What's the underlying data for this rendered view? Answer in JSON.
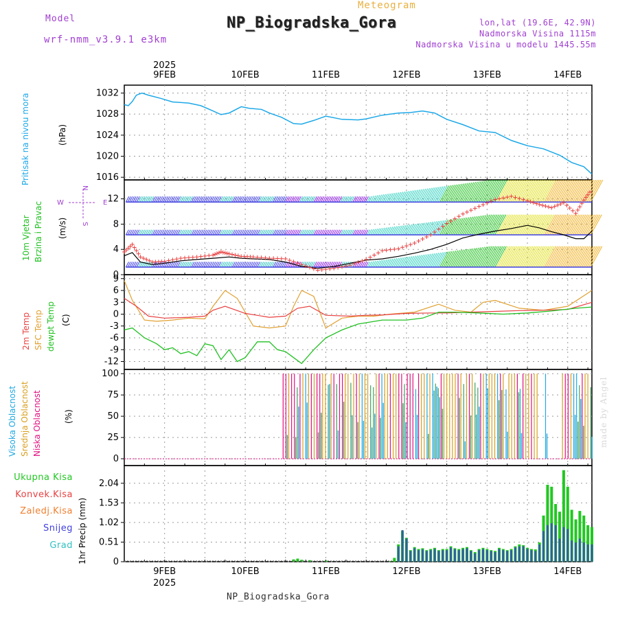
{
  "header": {
    "model_label": "Model",
    "model_name": "wrf-nmm_v3.9.1 e3km",
    "meteogram_label": "Meteogram",
    "station": "NP_Biogradska_Gora",
    "lonlat": "lon,lat (19.6E, 42.9N)",
    "altitude": "Nadmorska Visina 1115m",
    "model_altitude": "Nadmorska Visina u modelu 1445.55m"
  },
  "footer": {
    "station": "NP_Biogradska_Gora",
    "made_by": "made by Angel"
  },
  "colors": {
    "pressure": "#1ca8e8",
    "temp2m": "#e84040",
    "sfc": "#e0a030",
    "dewpt": "#20c020",
    "high_cloud": "#20a8e0",
    "mid_cloud": "#d8a020",
    "low_cloud": "#e01080",
    "precip_total": "#20c820",
    "precip_conv": "#e84040",
    "precip_frozen": "#f08030",
    "snow": "#4040e0",
    "hail": "#30c0c0",
    "wind_line": "#000000",
    "gust_cross": "#e84040"
  },
  "chart_data": [
    {
      "type": "line",
      "title": "Pritisak na nivou mora",
      "ylabel": "(hPa)",
      "ylim": [
        1015.5,
        1033.5
      ],
      "yticks": [
        1016,
        1020,
        1024,
        1028,
        1032
      ],
      "yticklabels": [
        "1016",
        "1020",
        "1024",
        "1028",
        "1032"
      ],
      "top_year": "2025",
      "x_days": [
        "9FEB",
        "10FEB",
        "11FEB",
        "12FEB",
        "13FEB",
        "14FEB"
      ],
      "series": [
        {
          "name": "pressure",
          "x": [
            0,
            0.05,
            0.1,
            0.15,
            0.22,
            0.3,
            0.45,
            0.6,
            0.8,
            0.95,
            1.1,
            1.2,
            1.3,
            1.45,
            1.55,
            1.7,
            1.8,
            1.95,
            2.1,
            2.2,
            2.35,
            2.5,
            2.7,
            2.9,
            3.0,
            3.2,
            3.4,
            3.55,
            3.7,
            3.85,
            4.0,
            4.2,
            4.4,
            4.6,
            4.8,
            5.0,
            5.2,
            5.4,
            5.55,
            5.7,
            5.8
          ],
          "values": [
            1029.8,
            1029.6,
            1030.4,
            1031.6,
            1032.0,
            1031.6,
            1031.0,
            1030.3,
            1030.1,
            1029.6,
            1028.6,
            1027.9,
            1028.2,
            1029.4,
            1029.1,
            1028.9,
            1028.2,
            1027.4,
            1026.2,
            1026.1,
            1026.8,
            1027.6,
            1027.0,
            1026.9,
            1027.1,
            1027.8,
            1028.2,
            1028.3,
            1028.6,
            1028.2,
            1027.0,
            1026.0,
            1024.8,
            1024.5,
            1023.0,
            1022.0,
            1021.4,
            1020.2,
            1018.8,
            1018.0,
            1016.6
          ]
        }
      ]
    },
    {
      "type": "line",
      "title": "10m Vjetar Brzina i Pravac",
      "ylabel": "(m/s)",
      "ylim": [
        0,
        15
      ],
      "yticks": [
        0,
        4,
        8,
        12
      ],
      "yticklabels": [
        "0",
        "4",
        "8",
        "12"
      ],
      "compass": [
        "N",
        "E",
        "S",
        "W"
      ],
      "series": [
        {
          "name": "wind_speed",
          "x": [
            0,
            0.1,
            0.2,
            0.35,
            0.5,
            0.7,
            0.9,
            1.1,
            1.3,
            1.45,
            1.6,
            1.8,
            2.0,
            2.2,
            2.4,
            2.6,
            2.8,
            3.0,
            3.2,
            3.4,
            3.6,
            3.8,
            4.0,
            4.2,
            4.4,
            4.6,
            4.8,
            5.0,
            5.15,
            5.3,
            5.45,
            5.6,
            5.7,
            5.8
          ],
          "values": [
            3.0,
            3.5,
            2.0,
            1.6,
            1.8,
            2.2,
            2.4,
            2.6,
            2.8,
            2.6,
            2.5,
            2.4,
            2.0,
            1.3,
            1.0,
            1.3,
            1.8,
            2.3,
            2.5,
            2.9,
            3.4,
            4.0,
            4.8,
            5.8,
            6.4,
            6.9,
            7.3,
            7.8,
            7.4,
            6.8,
            6.3,
            5.7,
            5.7,
            6.9
          ]
        },
        {
          "name": "wind_gust",
          "x": [
            0,
            0.1,
            0.2,
            0.35,
            0.5,
            0.7,
            0.9,
            1.1,
            1.2,
            1.3,
            1.45,
            1.6,
            1.8,
            2.0,
            2.2,
            2.4,
            2.6,
            2.8,
            3.0,
            3.2,
            3.4,
            3.6,
            3.8,
            4.0,
            4.2,
            4.4,
            4.6,
            4.8,
            5.0,
            5.15,
            5.3,
            5.45,
            5.6,
            5.7,
            5.8
          ],
          "values": [
            3.6,
            4.8,
            2.8,
            2.0,
            2.1,
            2.6,
            2.8,
            3.1,
            3.6,
            3.3,
            2.9,
            2.8,
            2.6,
            2.5,
            1.6,
            0.7,
            1.0,
            1.5,
            2.4,
            3.8,
            4.1,
            5.0,
            6.3,
            8.1,
            9.6,
            10.8,
            11.9,
            12.4,
            11.7,
            11.1,
            10.6,
            11.4,
            9.7,
            11.8,
            13.5
          ]
        }
      ]
    },
    {
      "type": "line",
      "title": "2m Temp / SFC Temp / dewpt Temp",
      "ylabel": "(C)",
      "ylim": [
        -14,
        10
      ],
      "yticks": [
        -12,
        -9,
        -6,
        -3,
        0,
        3,
        6,
        9
      ],
      "yticklabels": [
        "-12",
        "-9",
        "-6",
        "-3",
        "0",
        "3",
        "6",
        "9"
      ],
      "series": [
        {
          "name": "2m Temp",
          "x": [
            0,
            0.15,
            0.3,
            0.5,
            0.8,
            1.0,
            1.1,
            1.25,
            1.5,
            1.8,
            2.0,
            2.15,
            2.3,
            2.5,
            2.8,
            3.0,
            3.2,
            3.5,
            3.8,
            4.0,
            4.3,
            4.6,
            4.9,
            5.2,
            5.5,
            5.8
          ],
          "values": [
            4.0,
            2.0,
            -0.5,
            -1.0,
            -0.8,
            -0.5,
            1.0,
            2.0,
            0.2,
            -0.8,
            -0.5,
            1.5,
            2.0,
            -0.3,
            -0.5,
            -0.3,
            -0.2,
            0.2,
            0.3,
            0.3,
            0.5,
            0.7,
            0.9,
            1.0,
            1.2,
            3.0
          ]
        },
        {
          "name": "SFC Temp",
          "x": [
            0,
            0.1,
            0.25,
            0.4,
            0.6,
            0.8,
            1.0,
            1.1,
            1.25,
            1.4,
            1.6,
            1.8,
            2.0,
            2.1,
            2.2,
            2.35,
            2.5,
            2.7,
            2.9,
            3.1,
            3.3,
            3.6,
            3.9,
            4.1,
            4.3,
            4.45,
            4.6,
            4.9,
            5.2,
            5.5,
            5.8
          ],
          "values": [
            8.5,
            3.5,
            -1.5,
            -1.8,
            -1.5,
            -1.0,
            -1.2,
            2.0,
            6.0,
            4.0,
            -3.0,
            -3.5,
            -3.0,
            2.0,
            6.0,
            4.5,
            -3.5,
            -1.0,
            -0.5,
            -0.5,
            0.0,
            0.5,
            2.5,
            1.0,
            0.5,
            3.0,
            3.5,
            1.5,
            1.0,
            2.0,
            6.0
          ]
        },
        {
          "name": "dewpt Temp",
          "x": [
            0,
            0.1,
            0.25,
            0.4,
            0.5,
            0.6,
            0.7,
            0.8,
            0.9,
            1.0,
            1.1,
            1.2,
            1.3,
            1.4,
            1.5,
            1.65,
            1.8,
            1.9,
            2.0,
            2.1,
            2.2,
            2.35,
            2.5,
            2.7,
            2.9,
            3.2,
            3.5,
            3.7,
            3.9,
            4.1,
            4.4,
            4.7,
            5.0,
            5.3,
            5.6,
            5.8
          ],
          "values": [
            -4.0,
            -3.5,
            -6.0,
            -7.5,
            -9.0,
            -8.5,
            -10.0,
            -9.5,
            -10.5,
            -7.5,
            -8.0,
            -11.5,
            -9.0,
            -12.0,
            -11.0,
            -7.0,
            -7.0,
            -9.0,
            -9.5,
            -11.0,
            -12.5,
            -9.0,
            -6.0,
            -4.0,
            -2.5,
            -1.5,
            -1.5,
            -1.0,
            0.5,
            0.5,
            0.3,
            0.0,
            0.3,
            0.8,
            1.5,
            1.8
          ]
        }
      ]
    },
    {
      "type": "bar",
      "title": "Visoka / Srednja / Niska Oblacnost",
      "ylabel": "(%)",
      "ylim": [
        -8,
        105
      ],
      "yticks": [
        0,
        25,
        50,
        75,
        100
      ],
      "yticklabels": [
        "0",
        "25",
        "50",
        "75",
        "100"
      ],
      "note": "Thin cloud-cover bars from ~10 Feb 12 UTC onward; values mostly 100%"
    },
    {
      "type": "bar",
      "title": "1hr Precip",
      "ylabel": "1hr Precip (mm)",
      "ylim": [
        0,
        2.5
      ],
      "yticks": [
        0,
        0.51,
        1.02,
        1.53,
        2.04
      ],
      "yticklabels": [
        "0",
        "0.51",
        "1.02",
        "1.53",
        "2.04"
      ],
      "legend": [
        "Ukupna Kisa",
        "Konvek.Kisa",
        "Zaledj.Kisa",
        "Snijeg",
        "Grad"
      ],
      "bottom_year": "2025",
      "series": [
        {
          "name": "Ukupna Kisa",
          "x": [
            2.1,
            2.15,
            2.2,
            2.3,
            2.5,
            3.3,
            3.35,
            3.4,
            3.45,
            3.5,
            3.55,
            3.6,
            3.65,
            3.7,
            3.75,
            3.8,
            3.85,
            3.9,
            3.95,
            4.0,
            4.05,
            4.1,
            4.15,
            4.2,
            4.25,
            4.3,
            4.35,
            4.4,
            4.45,
            4.5,
            4.55,
            4.6,
            4.65,
            4.7,
            4.75,
            4.8,
            4.85,
            4.9,
            4.95,
            5.0,
            5.05,
            5.1,
            5.15,
            5.2,
            5.25,
            5.3,
            5.35,
            5.4,
            5.45,
            5.5,
            5.55,
            5.6,
            5.65,
            5.7,
            5.75,
            5.8
          ],
          "values": [
            0.06,
            0.08,
            0.05,
            0.04,
            0.03,
            0.01,
            0.1,
            0.45,
            0.8,
            0.62,
            0.3,
            0.38,
            0.33,
            0.35,
            0.3,
            0.33,
            0.36,
            0.3,
            0.33,
            0.33,
            0.4,
            0.35,
            0.33,
            0.36,
            0.38,
            0.3,
            0.25,
            0.33,
            0.36,
            0.33,
            0.3,
            0.28,
            0.36,
            0.33,
            0.3,
            0.33,
            0.4,
            0.45,
            0.43,
            0.36,
            0.33,
            0.32,
            0.5,
            1.2,
            2.0,
            1.95,
            1.5,
            1.3,
            2.38,
            1.95,
            1.35,
            1.1,
            1.32,
            1.2,
            0.95,
            0.9
          ]
        },
        {
          "name": "Snijeg",
          "x": [
            3.4,
            3.45,
            3.5,
            3.55,
            3.6,
            3.65,
            3.7,
            3.75,
            3.8,
            3.85,
            3.9,
            3.95,
            4.0,
            4.05,
            4.1,
            4.15,
            4.2,
            4.25,
            4.3,
            4.35,
            4.4,
            4.45,
            4.5,
            4.55,
            4.6,
            4.65,
            4.7,
            4.75,
            4.8,
            4.85,
            4.9,
            4.95,
            5.0,
            5.05,
            5.1,
            5.15,
            5.2,
            5.25,
            5.3,
            5.35,
            5.4,
            5.45,
            5.5,
            5.55,
            5.6,
            5.65,
            5.7,
            5.75,
            5.8
          ],
          "values": [
            0.4,
            0.82,
            0.6,
            0.28,
            0.35,
            0.3,
            0.32,
            0.28,
            0.3,
            0.33,
            0.28,
            0.3,
            0.3,
            0.37,
            0.33,
            0.3,
            0.33,
            0.35,
            0.28,
            0.22,
            0.3,
            0.33,
            0.3,
            0.28,
            0.25,
            0.33,
            0.3,
            0.28,
            0.3,
            0.37,
            0.4,
            0.4,
            0.33,
            0.3,
            0.28,
            0.45,
            0.8,
            0.95,
            1.0,
            0.95,
            0.6,
            0.9,
            0.85,
            0.55,
            0.5,
            0.6,
            0.5,
            0.45,
            0.45
          ]
        }
      ]
    }
  ]
}
